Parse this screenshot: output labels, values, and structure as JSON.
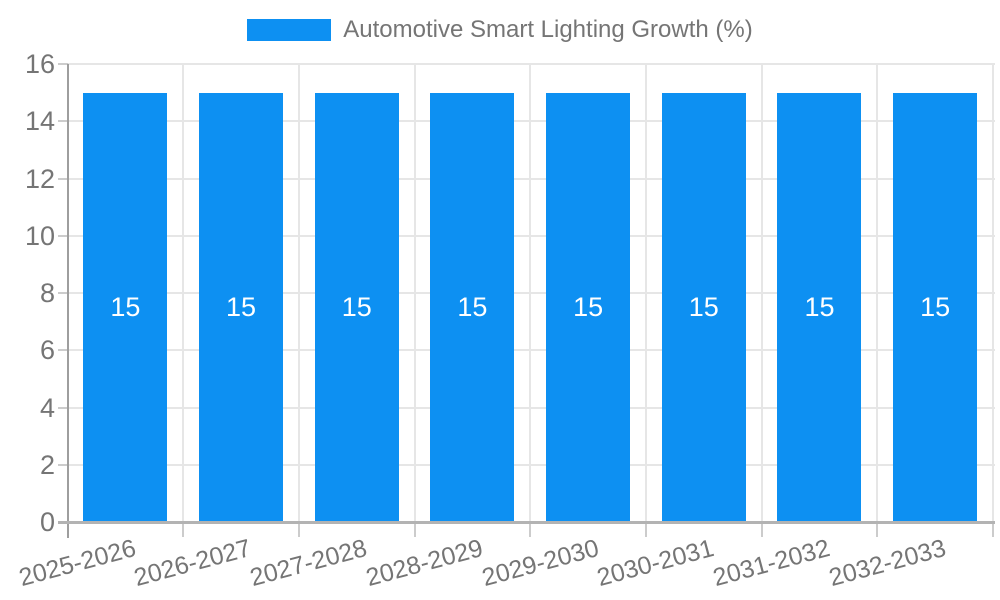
{
  "chart_data": {
    "type": "bar",
    "title": "Automotive Smart Lighting Growth (%)",
    "categories": [
      "2025-2026",
      "2026-2027",
      "2027-2028",
      "2028-2029",
      "2029-2030",
      "2030-2031",
      "2031-2032",
      "2032-2033"
    ],
    "series": [
      {
        "name": "Automotive Smart Lighting Growth (%)",
        "values": [
          15,
          15,
          15,
          15,
          15,
          15,
          15,
          15
        ]
      }
    ],
    "bar_value_labels": [
      "15",
      "15",
      "15",
      "15",
      "15",
      "15",
      "15",
      "15"
    ],
    "xlabel": "",
    "ylabel": "",
    "ylim": [
      0,
      16
    ],
    "yticks": [
      0,
      2,
      4,
      6,
      8,
      10,
      12,
      14,
      16
    ],
    "grid": true,
    "legend_position": "top-center",
    "x_label_rotation_deg": -15,
    "colors": {
      "bar": "#0d90f2",
      "grid_line": "#e6e6e6",
      "axis_line": "#9e9e9e",
      "baseline": "#b3b3b3",
      "tick_mark": "#cccccc",
      "axis_text": "#757575",
      "bar_value_text": "#ffffff",
      "background": "#ffffff"
    }
  }
}
